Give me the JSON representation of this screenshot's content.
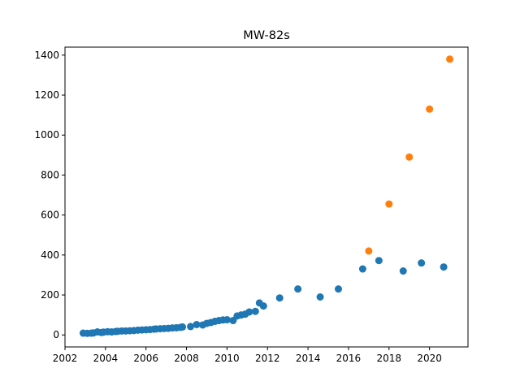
{
  "chart_data": {
    "type": "scatter",
    "title": "MW-82s",
    "xlabel": "",
    "ylabel": "",
    "xlim": [
      2002.0,
      2021.9
    ],
    "ylim": [
      -60,
      1440
    ],
    "x_ticks": [
      2002,
      2004,
      2006,
      2008,
      2010,
      2012,
      2014,
      2016,
      2018,
      2020
    ],
    "y_ticks": [
      0,
      200,
      400,
      600,
      800,
      1000,
      1200,
      1400
    ],
    "grid": false,
    "legend": "none",
    "series": [
      {
        "color": "#1f77b4",
        "points": [
          [
            2002.9,
            9
          ],
          [
            2003.1,
            8
          ],
          [
            2003.3,
            9
          ],
          [
            2003.4,
            10
          ],
          [
            2003.6,
            15
          ],
          [
            2003.8,
            12
          ],
          [
            2003.9,
            14
          ],
          [
            2004.1,
            16
          ],
          [
            2004.3,
            15
          ],
          [
            2004.5,
            17
          ],
          [
            2004.6,
            18
          ],
          [
            2004.8,
            20
          ],
          [
            2005.0,
            20
          ],
          [
            2005.2,
            21
          ],
          [
            2005.4,
            22
          ],
          [
            2005.6,
            24
          ],
          [
            2005.8,
            25
          ],
          [
            2006.0,
            26
          ],
          [
            2006.2,
            27
          ],
          [
            2006.4,
            29
          ],
          [
            2006.5,
            30
          ],
          [
            2006.7,
            31
          ],
          [
            2006.9,
            32
          ],
          [
            2007.1,
            33
          ],
          [
            2007.3,
            35
          ],
          [
            2007.5,
            36
          ],
          [
            2007.7,
            38
          ],
          [
            2007.8,
            40
          ],
          [
            2008.2,
            42
          ],
          [
            2008.5,
            52
          ],
          [
            2008.8,
            50
          ],
          [
            2009.0,
            58
          ],
          [
            2009.2,
            62
          ],
          [
            2009.4,
            68
          ],
          [
            2009.6,
            72
          ],
          [
            2009.8,
            75
          ],
          [
            2010.0,
            76
          ],
          [
            2010.3,
            72
          ],
          [
            2010.5,
            95
          ],
          [
            2010.7,
            100
          ],
          [
            2010.9,
            104
          ],
          [
            2011.1,
            115
          ],
          [
            2011.4,
            118
          ],
          [
            2011.6,
            160
          ],
          [
            2011.8,
            145
          ],
          [
            2012.6,
            185
          ],
          [
            2013.5,
            230
          ],
          [
            2014.6,
            190
          ],
          [
            2015.5,
            230
          ],
          [
            2016.7,
            330
          ],
          [
            2017.5,
            372
          ],
          [
            2018.7,
            320
          ],
          [
            2019.6,
            360
          ],
          [
            2020.7,
            340
          ]
        ]
      },
      {
        "color": "#ff7f0e",
        "points": [
          [
            2017.0,
            420
          ],
          [
            2018.0,
            655
          ],
          [
            2019.0,
            890
          ],
          [
            2020.0,
            1130
          ],
          [
            2021.0,
            1380
          ]
        ]
      }
    ]
  }
}
